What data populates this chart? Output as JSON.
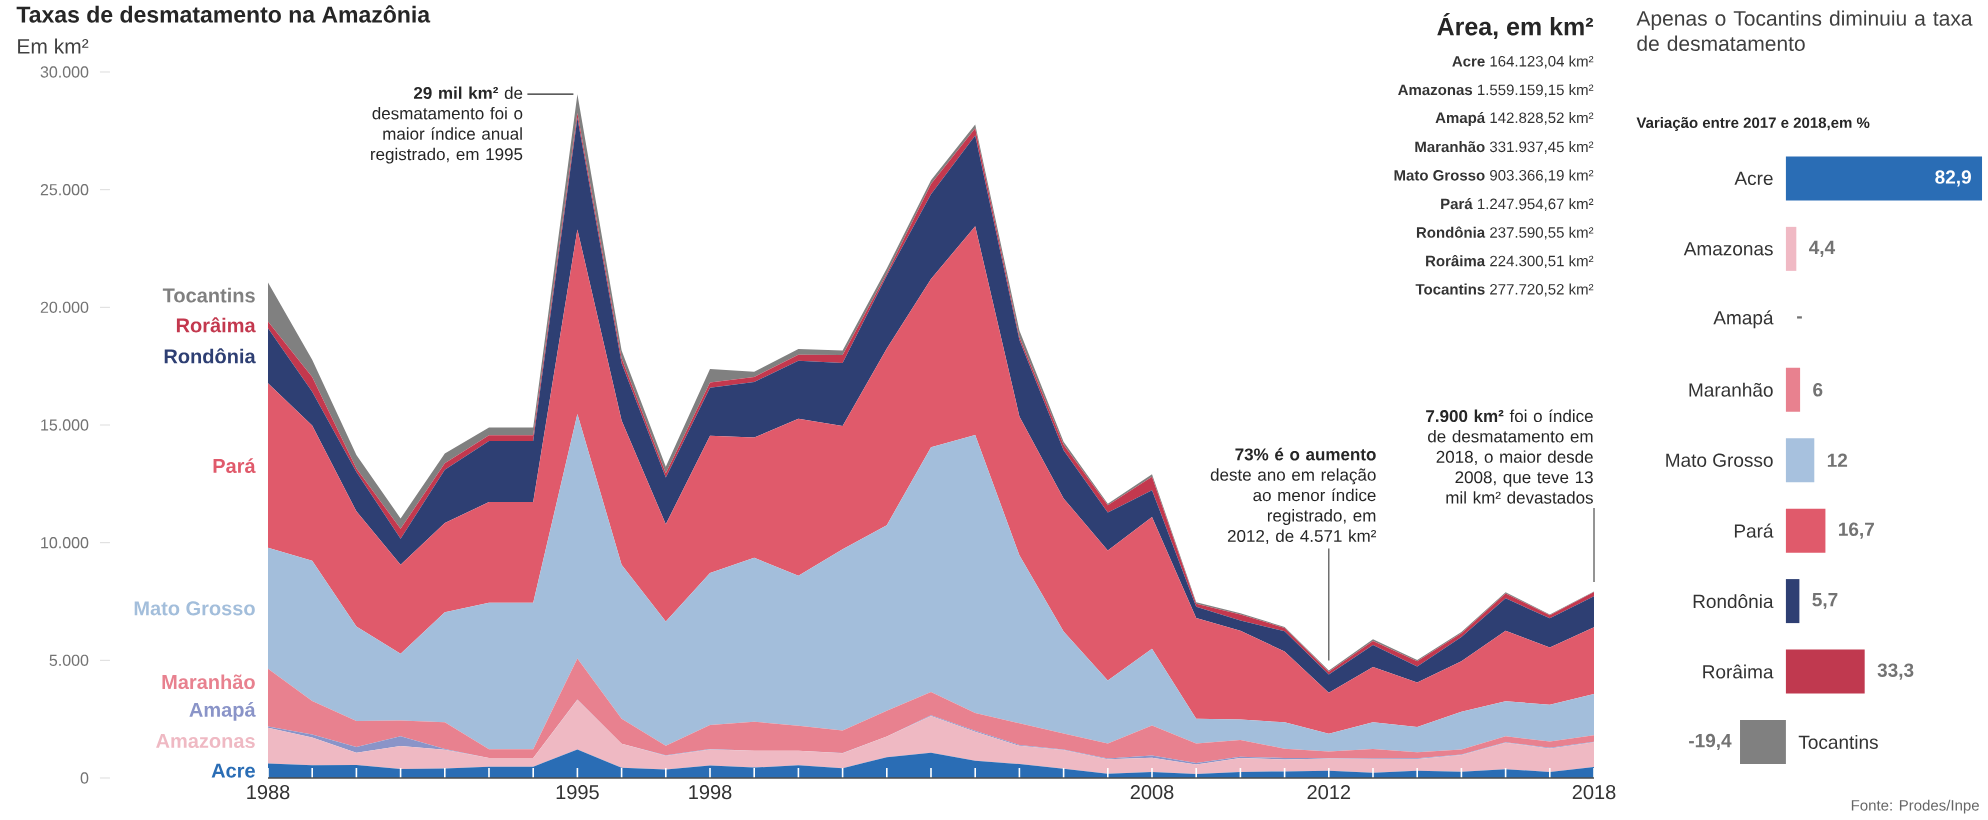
{
  "chart_data": [
    {
      "type": "area",
      "title": "Taxas de desmatamento na Amazônia",
      "ylabel": "Em km²",
      "stacked": true,
      "x": [
        1988,
        1989,
        1990,
        1991,
        1992,
        1993,
        1994,
        1995,
        1996,
        1997,
        1998,
        1999,
        2000,
        2001,
        2002,
        2003,
        2004,
        2005,
        2006,
        2007,
        2008,
        2009,
        2010,
        2011,
        2012,
        2013,
        2014,
        2015,
        2016,
        2017,
        2018
      ],
      "xlim": [
        1988,
        2018
      ],
      "xticks": [
        1988,
        {
          "value": 1989,
          "label": null
        },
        {
          "value": 1990,
          "label": null
        },
        {
          "value": 1991,
          "label": null
        },
        {
          "value": 1992,
          "label": null
        },
        {
          "value": 1993,
          "label": null
        },
        {
          "value": 1994,
          "label": null
        },
        1995,
        {
          "value": 1996,
          "label": null
        },
        {
          "value": 1997,
          "label": null
        },
        1998,
        {
          "value": 1999,
          "label": null
        },
        {
          "value": 2000,
          "label": null
        },
        {
          "value": 2001,
          "label": null
        },
        {
          "value": 2002,
          "label": null
        },
        {
          "value": 2003,
          "label": null
        },
        {
          "value": 2004,
          "label": null
        },
        {
          "value": 2005,
          "label": null
        },
        {
          "value": 2006,
          "label": null
        },
        {
          "value": 2007,
          "label": null
        },
        2008,
        {
          "value": 2009,
          "label": null
        },
        {
          "value": 2010,
          "label": null
        },
        {
          "value": 2011,
          "label": null
        },
        2012,
        {
          "value": 2013,
          "label": null
        },
        {
          "value": 2014,
          "label": null
        },
        {
          "value": 2015,
          "label": null
        },
        {
          "value": 2016,
          "label": null
        },
        {
          "value": 2017,
          "label": null
        },
        2018
      ],
      "ylim": [
        0,
        30000
      ],
      "yticks": [
        0,
        {
          "value": 5000,
          "label": "5.000"
        },
        {
          "value": 10000,
          "label": "10.000"
        },
        {
          "value": 15000,
          "label": "15.000"
        },
        {
          "value": 20000,
          "label": "20.000"
        },
        {
          "value": 25000,
          "label": "25.000"
        },
        {
          "value": 30000,
          "label": "30.000"
        }
      ],
      "series": [
        {
          "name": "Acre",
          "color": "#2a6db5",
          "values": [
            620,
            540,
            550,
            380,
            400,
            482,
            482,
            1208,
            433,
            358,
            536,
            441,
            547,
            419,
            883,
            1078,
            728,
            592,
            398,
            184,
            254,
            167,
            259,
            280,
            305,
            221,
            309,
            264,
            372,
            257,
            470
          ]
        },
        {
          "name": "Amazonas",
          "color": "#efb9c3",
          "values": [
            1510,
            1180,
            520,
            980,
            799,
            370,
            370,
            2114,
            1023,
            589,
            670,
            720,
            612,
            634,
            885,
            1558,
            1232,
            775,
            788,
            610,
            604,
            405,
            595,
            502,
            523,
            583,
            500,
            712,
            1129,
            1001,
            1045
          ]
        },
        {
          "name": "Amapá",
          "color": "#8a94c8",
          "values": [
            60,
            130,
            250,
            410,
            36,
            0,
            0,
            9,
            0,
            18,
            30,
            0,
            0,
            7,
            0,
            25,
            46,
            33,
            30,
            39,
            100,
            70,
            53,
            66,
            27,
            23,
            31,
            25,
            17,
            24,
            24
          ]
        },
        {
          "name": "Maranhão",
          "color": "#e8818f",
          "values": [
            2450,
            1420,
            1100,
            670,
            1135,
            372,
            372,
            1745,
            1061,
            409,
            1012,
            1230,
            1065,
            958,
            1085,
            993,
            755,
            922,
            674,
            631,
            1271,
            828,
            712,
            396,
            269,
            403,
            257,
            209,
            258,
            265,
            281
          ]
        },
        {
          "name": "Mato Grosso",
          "color": "#a3bedb",
          "values": [
            5140,
            5960,
            4020,
            2840,
            4674,
            6220,
            6220,
            10391,
            6543,
            5271,
            6466,
            6963,
            6369,
            7703,
            7892,
            10405,
            11814,
            7145,
            4333,
            2678,
            3258,
            1049,
            871,
            1120,
            757,
            1139,
            1075,
            1601,
            1489,
            1561,
            1749
          ]
        },
        {
          "name": "Pará",
          "color": "#e05a6b",
          "values": [
            6990,
            5750,
            4890,
            3780,
            3787,
            4284,
            4284,
            7845,
            6135,
            4139,
            5829,
            5111,
            6671,
            5237,
            7510,
            7145,
            8870,
            5899,
            5659,
            5526,
            5607,
            4281,
            3770,
            3008,
            1741,
            2346,
            1887,
            2153,
            2992,
            2433,
            2840
          ]
        },
        {
          "name": "Rondônia",
          "color": "#2e3f73",
          "values": [
            2340,
            1430,
            1670,
            1110,
            2265,
            2595,
            2595,
            4730,
            2432,
            1986,
            2041,
            2358,
            2465,
            2673,
            3099,
            3597,
            3858,
            3244,
            2049,
            1611,
            1136,
            482,
            435,
            865,
            773,
            932,
            684,
            1030,
            1376,
            1243,
            1314
          ]
        },
        {
          "name": "Rorâima",
          "color": "#c3384e",
          "values": [
            290,
            630,
            150,
            420,
            281,
            240,
            240,
            220,
            214,
            184,
            223,
            220,
            253,
            345,
            84,
            439,
            311,
            133,
            231,
            309,
            574,
            121,
            256,
            141,
            124,
            170,
            219,
            156,
            202,
            132,
            176
          ]
        },
        {
          "name": "Tocantins",
          "color": "#808080",
          "values": [
            1650,
            730,
            580,
            440,
            409,
            333,
            333,
            797,
            320,
            273,
            576,
            216,
            244,
            189,
            212,
            156,
            158,
            271,
            124,
            63,
            107,
            61,
            49,
            40,
            52,
            74,
            50,
            57,
            58,
            31,
            25
          ]
        }
      ],
      "annotations": [
        {
          "text": "**29 mil km²** de desmatamento foi o maior índice anual registrado, em 1995",
          "x": 1995,
          "y": 29059
        },
        {
          "text": "**73% é o aumento** deste ano em relação ao menor índice registrado, em 2012, de 4.571 km²",
          "x": 2012,
          "y": 4571
        },
        {
          "text": "**7.900 km²** foi o índice de desmatamento em 2018, o maior desde 2008, que teve 13 mil km² devastados",
          "x": 2018,
          "y": 7900
        }
      ]
    },
    {
      "type": "other",
      "title": "Área, em km²",
      "annotations": [
        "**Acre** 164.123,04 km²",
        "**Amazonas** 1.559.159,15 km²",
        "**Amapá** 142.828,52 km²",
        "**Maranhão** 331.937,45 km²",
        "**Mato Grosso** 903.366,19 km²",
        "**Pará** 1.247.954,67 km²",
        "**Rondônia** 237.590,55 km²",
        "**Rorâima** 224.300,51 km²",
        "**Tocantins** 277.720,52 km²"
      ]
    },
    {
      "type": "bar",
      "orientation": "horizontal",
      "title": "Apenas o Tocantins diminuiu a taxa de desmatamento",
      "subtitle": "Variação entre 2017 e 2018,em %",
      "categories": [
        "Acre",
        "Amazonas",
        "Amapá",
        "Maranhão",
        "Mato Grosso",
        "Pará",
        "Rondônia",
        "Rorâima",
        "Tocantins"
      ],
      "values": [
        82.9,
        4.4,
        null,
        6,
        12,
        16.7,
        5.7,
        33.3,
        -19.4
      ],
      "colors": [
        "#2a6db5",
        "#f0b9c4",
        null,
        "#e8818f",
        "#a7c1de",
        "#e05a6b",
        "#2e3f73",
        "#c0394f",
        "#808080"
      ],
      "value_labels": [
        "82,9",
        "4,4",
        "-",
        "6",
        "12",
        "16,7",
        "5,7",
        "33,3",
        "-19,4"
      ],
      "annotations": [
        "Fonte: Prodes/Inpe"
      ]
    }
  ]
}
